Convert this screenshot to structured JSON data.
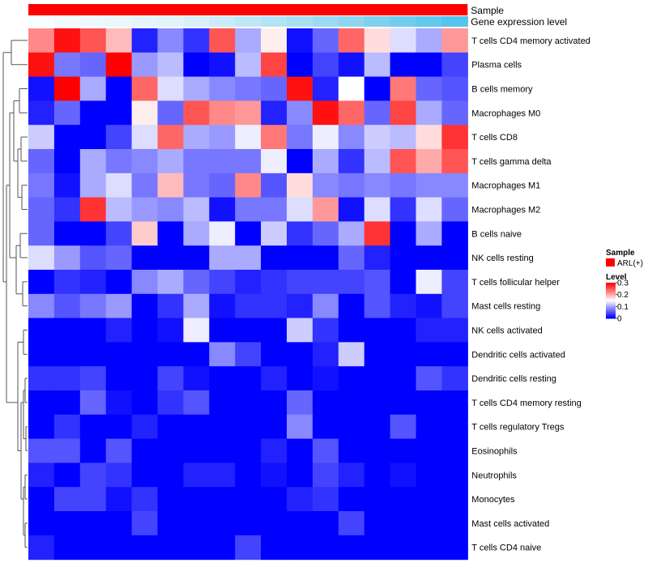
{
  "chart_data": {
    "type": "heatmap",
    "title": "",
    "annotations": {
      "sample_label": "Sample",
      "expression_label": "Gene expression level",
      "sample_color": "#ff0000",
      "expression_gradient": [
        "#f7fcfe",
        "#dff3fa",
        "#9fdcf2",
        "#55c3ec"
      ]
    },
    "rows": [
      "T cells CD4 memory activated",
      "Plasma cells",
      "B cells memory",
      "Macrophages M0",
      "T cells CD8",
      "T cells gamma delta",
      "Macrophages M1",
      "Macrophages M2",
      "B cells naive",
      "NK cells resting",
      "T cells follicular helper",
      "Mast cells resting",
      "NK cells activated",
      "Dendritic cells activated",
      "Dendritic cells resting",
      "T cells CD4 memory resting",
      "T cells regulatory  Tregs",
      "Eosinophils",
      "Neutrophils",
      "Monocytes",
      "Mast cells activated",
      "T cells CD4 naive"
    ],
    "n_columns": 17,
    "value_range": [
      0,
      0.3
    ],
    "colors": {
      "low": "#0000ff",
      "mid": "#ffffff",
      "high": "#ff0000"
    },
    "values": [
      [
        0.22,
        0.29,
        0.25,
        0.19,
        0.02,
        0.08,
        0.03,
        0.25,
        0.1,
        0.16,
        0.01,
        0.06,
        0.24,
        0.17,
        0.13,
        0.1,
        0.21
      ],
      [
        0.29,
        0.07,
        0.06,
        0.3,
        0.09,
        0.11,
        0.0,
        0.01,
        0.11,
        0.26,
        0.0,
        0.04,
        0.01,
        0.11,
        0.0,
        0.0,
        0.04
      ],
      [
        0.01,
        0.3,
        0.1,
        0.0,
        0.24,
        0.13,
        0.1,
        0.08,
        0.07,
        0.06,
        0.29,
        0.02,
        0.15,
        0.0,
        0.23,
        0.06,
        0.05
      ],
      [
        0.02,
        0.06,
        0.0,
        0.0,
        0.16,
        0.06,
        0.25,
        0.22,
        0.21,
        0.02,
        0.08,
        0.29,
        0.24,
        0.06,
        0.26,
        0.1,
        0.06
      ],
      [
        0.12,
        0.0,
        0.0,
        0.04,
        0.13,
        0.24,
        0.1,
        0.09,
        0.14,
        0.23,
        0.07,
        0.14,
        0.08,
        0.12,
        0.11,
        0.17,
        0.27
      ],
      [
        0.06,
        0.0,
        0.1,
        0.07,
        0.08,
        0.1,
        0.07,
        0.07,
        0.07,
        0.14,
        0.0,
        0.1,
        0.03,
        0.11,
        0.25,
        0.2,
        0.25
      ],
      [
        0.07,
        0.01,
        0.1,
        0.13,
        0.07,
        0.19,
        0.07,
        0.06,
        0.22,
        0.05,
        0.17,
        0.08,
        0.07,
        0.08,
        0.07,
        0.08,
        0.08
      ],
      [
        0.06,
        0.03,
        0.27,
        0.11,
        0.09,
        0.08,
        0.11,
        0.01,
        0.07,
        0.07,
        0.13,
        0.21,
        0.01,
        0.13,
        0.03,
        0.13,
        0.06
      ],
      [
        0.06,
        0.0,
        0.0,
        0.04,
        0.18,
        0.0,
        0.1,
        0.14,
        0.0,
        0.12,
        0.03,
        0.06,
        0.1,
        0.27,
        0.0,
        0.1,
        0.0
      ],
      [
        0.13,
        0.09,
        0.05,
        0.06,
        0.0,
        0.0,
        0.0,
        0.1,
        0.1,
        0.0,
        0.0,
        0.0,
        0.06,
        0.02,
        0.0,
        0.0,
        0.0
      ],
      [
        0.0,
        0.03,
        0.02,
        0.0,
        0.08,
        0.1,
        0.06,
        0.04,
        0.02,
        0.03,
        0.04,
        0.04,
        0.04,
        0.05,
        0.0,
        0.14,
        0.04
      ],
      [
        0.08,
        0.05,
        0.07,
        0.09,
        0.0,
        0.03,
        0.1,
        0.01,
        0.03,
        0.03,
        0.02,
        0.08,
        0.0,
        0.05,
        0.02,
        0.01,
        0.04
      ],
      [
        0.0,
        0.0,
        0.0,
        0.02,
        0.0,
        0.01,
        0.14,
        0.0,
        0.0,
        0.0,
        0.12,
        0.03,
        0.0,
        0.0,
        0.0,
        0.02,
        0.02
      ],
      [
        0.0,
        0.0,
        0.0,
        0.0,
        0.0,
        0.0,
        0.0,
        0.08,
        0.04,
        0.0,
        0.0,
        0.02,
        0.12,
        0.0,
        0.0,
        0.0,
        0.0
      ],
      [
        0.03,
        0.03,
        0.04,
        0.0,
        0.0,
        0.04,
        0.01,
        0.0,
        0.0,
        0.02,
        0.0,
        0.01,
        0.0,
        0.0,
        0.0,
        0.05,
        0.03
      ],
      [
        0.0,
        0.0,
        0.06,
        0.01,
        0.0,
        0.03,
        0.05,
        0.0,
        0.0,
        0.0,
        0.06,
        0.0,
        0.0,
        0.0,
        0.0,
        0.0,
        0.0
      ],
      [
        0.0,
        0.03,
        0.0,
        0.0,
        0.02,
        0.0,
        0.0,
        0.0,
        0.0,
        0.0,
        0.08,
        0.0,
        0.0,
        0.0,
        0.05,
        0.0,
        0.0
      ],
      [
        0.05,
        0.05,
        0.0,
        0.05,
        0.0,
        0.0,
        0.0,
        0.0,
        0.0,
        0.02,
        0.0,
        0.05,
        0.0,
        0.0,
        0.0,
        0.0,
        0.0
      ],
      [
        0.02,
        0.0,
        0.04,
        0.03,
        0.0,
        0.0,
        0.02,
        0.02,
        0.0,
        0.01,
        0.0,
        0.04,
        0.02,
        0.0,
        0.01,
        0.0,
        0.0
      ],
      [
        0.0,
        0.04,
        0.04,
        0.01,
        0.03,
        0.0,
        0.0,
        0.0,
        0.0,
        0.0,
        0.02,
        0.03,
        0.0,
        0.0,
        0.0,
        0.0,
        0.0
      ],
      [
        0.0,
        0.0,
        0.0,
        0.0,
        0.04,
        0.0,
        0.0,
        0.0,
        0.0,
        0.0,
        0.0,
        0.0,
        0.04,
        0.0,
        0.0,
        0.0,
        0.0
      ],
      [
        0.02,
        0.0,
        0.0,
        0.0,
        0.0,
        0.0,
        0.0,
        0.0,
        0.04,
        0.0,
        0.0,
        0.0,
        0.0,
        0.0,
        0.0,
        0.0,
        0.0
      ]
    ],
    "legend": {
      "sample_title": "Sample",
      "sample_items": [
        {
          "label": "ARL(+)",
          "color": "#ff0000"
        }
      ],
      "level_title": "Level",
      "level_ticks": [
        0.3,
        0.2,
        0.1,
        0
      ],
      "level_tick_labels": [
        "0.3",
        "0.2",
        "0.1",
        "0"
      ],
      "position": "right"
    },
    "dendrogram": "left",
    "grid": false
  }
}
